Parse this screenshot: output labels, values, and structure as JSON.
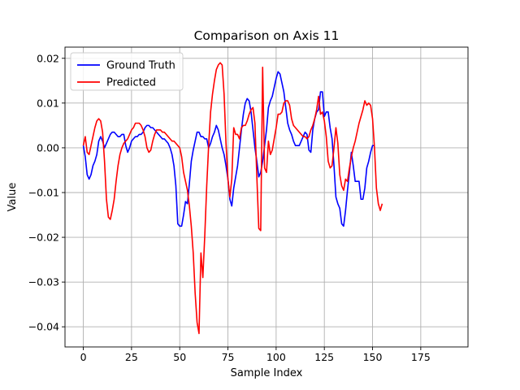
{
  "chart_data": {
    "type": "line",
    "title": "Comparison on Axis 11",
    "xlabel": "Sample Index",
    "ylabel": "Value",
    "xlim": [
      -9.5,
      199.5
    ],
    "ylim": [
      -0.0445,
      0.0225
    ],
    "xticks": [
      0,
      25,
      50,
      75,
      100,
      125,
      150,
      175
    ],
    "xtick_labels": [
      "0",
      "25",
      "50",
      "75",
      "100",
      "125",
      "150",
      "175"
    ],
    "yticks": [
      -0.04,
      -0.03,
      -0.02,
      -0.01,
      0.0,
      0.01,
      0.02
    ],
    "ytick_labels": [
      "−0.04",
      "−0.03",
      "−0.02",
      "−0.01",
      "0.00",
      "0.01",
      "0.02"
    ],
    "grid": true,
    "legend_position": "top-left",
    "series": [
      {
        "name": "Ground Truth",
        "color": "#0000ff",
        "points": [
          [
            0,
            0.0005
          ],
          [
            1,
            -0.002
          ],
          [
            2,
            -0.006
          ],
          [
            3,
            -0.007
          ],
          [
            4,
            -0.006
          ],
          [
            5,
            -0.004
          ],
          [
            6,
            -0.003
          ],
          [
            7,
            -0.0015
          ],
          [
            8,
            0.0015
          ],
          [
            9,
            0.0025
          ],
          [
            10,
            0.0015
          ],
          [
            11,
            0.0
          ],
          [
            12,
            0.001
          ],
          [
            13,
            0.002
          ],
          [
            14,
            0.003
          ],
          [
            15,
            0.0035
          ],
          [
            16,
            0.0035
          ],
          [
            17,
            0.003
          ],
          [
            18,
            0.0025
          ],
          [
            19,
            0.0025
          ],
          [
            20,
            0.003
          ],
          [
            21,
            0.003
          ],
          [
            22,
            0.0005
          ],
          [
            23,
            -0.001
          ],
          [
            24,
            0.0
          ],
          [
            25,
            0.0015
          ],
          [
            26,
            0.002
          ],
          [
            27,
            0.0025
          ],
          [
            28,
            0.0025
          ],
          [
            29,
            0.003
          ],
          [
            30,
            0.003
          ],
          [
            31,
            0.0035
          ],
          [
            32,
            0.0045
          ],
          [
            33,
            0.005
          ],
          [
            34,
            0.005
          ],
          [
            35,
            0.0045
          ],
          [
            36,
            0.0045
          ],
          [
            37,
            0.004
          ],
          [
            38,
            0.0035
          ],
          [
            39,
            0.003
          ],
          [
            40,
            0.0025
          ],
          [
            41,
            0.002
          ],
          [
            42,
            0.002
          ],
          [
            43,
            0.0015
          ],
          [
            44,
            0.001
          ],
          [
            45,
            0.0
          ],
          [
            46,
            -0.0015
          ],
          [
            47,
            -0.004
          ],
          [
            48,
            -0.0085
          ],
          [
            49,
            -0.017
          ],
          [
            50,
            -0.0175
          ],
          [
            51,
            -0.0175
          ],
          [
            52,
            -0.015
          ],
          [
            53,
            -0.012
          ],
          [
            54,
            -0.0125
          ],
          [
            55,
            -0.008
          ],
          [
            56,
            -0.003
          ],
          [
            57,
            -0.0005
          ],
          [
            58,
            0.0015
          ],
          [
            59,
            0.0035
          ],
          [
            60,
            0.0035
          ],
          [
            61,
            0.0025
          ],
          [
            62,
            0.0025
          ],
          [
            63,
            0.002
          ],
          [
            64,
            0.002
          ],
          [
            65,
            0.0
          ],
          [
            66,
            0.001
          ],
          [
            67,
            0.0025
          ],
          [
            68,
            0.0035
          ],
          [
            69,
            0.005
          ],
          [
            70,
            0.004
          ],
          [
            71,
            0.002
          ],
          [
            72,
            0.0
          ],
          [
            73,
            -0.0015
          ],
          [
            74,
            -0.004
          ],
          [
            75,
            -0.007
          ],
          [
            76,
            -0.0115
          ],
          [
            77,
            -0.013
          ],
          [
            78,
            -0.009
          ],
          [
            79,
            -0.0065
          ],
          [
            80,
            -0.004
          ],
          [
            81,
            0.0
          ],
          [
            82,
            0.004
          ],
          [
            83,
            0.0075
          ],
          [
            84,
            0.01
          ],
          [
            85,
            0.011
          ],
          [
            86,
            0.0105
          ],
          [
            87,
            0.008
          ],
          [
            88,
            0.004
          ],
          [
            89,
            0.0
          ],
          [
            90,
            -0.003
          ],
          [
            91,
            -0.0065
          ],
          [
            92,
            -0.0055
          ],
          [
            93,
            -0.003
          ],
          [
            94,
            0.0005
          ],
          [
            95,
            0.004
          ],
          [
            96,
            0.009
          ],
          [
            97,
            0.0105
          ],
          [
            98,
            0.0115
          ],
          [
            99,
            0.0135
          ],
          [
            100,
            0.0155
          ],
          [
            101,
            0.017
          ],
          [
            102,
            0.0165
          ],
          [
            103,
            0.0145
          ],
          [
            104,
            0.0125
          ],
          [
            105,
            0.009
          ],
          [
            106,
            0.0055
          ],
          [
            107,
            0.004
          ],
          [
            108,
            0.003
          ],
          [
            109,
            0.0015
          ],
          [
            110,
            0.0005
          ],
          [
            111,
            0.0005
          ],
          [
            112,
            0.0005
          ],
          [
            113,
            0.0015
          ],
          [
            114,
            0.0025
          ],
          [
            115,
            0.0035
          ],
          [
            116,
            0.003
          ],
          [
            117,
            -0.0005
          ],
          [
            118,
            -0.001
          ],
          [
            119,
            0.004
          ],
          [
            120,
            0.0065
          ],
          [
            121,
            0.008
          ],
          [
            122,
            0.0085
          ],
          [
            123,
            0.0125
          ],
          [
            124,
            0.0125
          ],
          [
            125,
            0.007
          ],
          [
            126,
            0.008
          ],
          [
            127,
            0.008
          ],
          [
            128,
            0.0045
          ],
          [
            129,
            0.002
          ],
          [
            130,
            -0.004
          ],
          [
            131,
            -0.011
          ],
          [
            132,
            -0.0125
          ],
          [
            133,
            -0.0135
          ],
          [
            134,
            -0.017
          ],
          [
            135,
            -0.0175
          ],
          [
            136,
            -0.014
          ],
          [
            137,
            -0.0095
          ],
          [
            138,
            -0.0055
          ],
          [
            139,
            -0.001
          ],
          [
            140,
            -0.004
          ],
          [
            141,
            -0.0075
          ],
          [
            142,
            -0.0075
          ],
          [
            143,
            -0.0075
          ],
          [
            144,
            -0.0115
          ],
          [
            145,
            -0.0115
          ],
          [
            146,
            -0.009
          ],
          [
            147,
            -0.0045
          ],
          [
            148,
            -0.003
          ],
          [
            149,
            -0.001
          ],
          [
            150,
            0.0005
          ],
          [
            151,
            0.0005
          ]
        ]
      },
      {
        "name": "Predicted",
        "color": "#ff0000",
        "points": [
          [
            0,
            0.0005
          ],
          [
            1,
            0.0025
          ],
          [
            2,
            -0.001
          ],
          [
            3,
            -0.0015
          ],
          [
            4,
            0.0005
          ],
          [
            5,
            0.0025
          ],
          [
            6,
            0.0045
          ],
          [
            7,
            0.006
          ],
          [
            8,
            0.0065
          ],
          [
            9,
            0.006
          ],
          [
            10,
            0.0035
          ],
          [
            11,
            -0.003
          ],
          [
            12,
            -0.0115
          ],
          [
            13,
            -0.0155
          ],
          [
            14,
            -0.016
          ],
          [
            15,
            -0.014
          ],
          [
            16,
            -0.0115
          ],
          [
            17,
            -0.0075
          ],
          [
            18,
            -0.004
          ],
          [
            19,
            -0.0015
          ],
          [
            20,
            0.0
          ],
          [
            21,
            0.001
          ],
          [
            22,
            0.0015
          ],
          [
            23,
            0.002
          ],
          [
            24,
            0.003
          ],
          [
            25,
            0.004
          ],
          [
            26,
            0.0045
          ],
          [
            27,
            0.0055
          ],
          [
            28,
            0.0055
          ],
          [
            29,
            0.0055
          ],
          [
            30,
            0.005
          ],
          [
            31,
            0.004
          ],
          [
            32,
            0.0025
          ],
          [
            33,
            0.0
          ],
          [
            34,
            -0.001
          ],
          [
            35,
            -0.0005
          ],
          [
            36,
            0.0015
          ],
          [
            37,
            0.003
          ],
          [
            38,
            0.004
          ],
          [
            39,
            0.004
          ],
          [
            40,
            0.004
          ],
          [
            41,
            0.0035
          ],
          [
            42,
            0.0035
          ],
          [
            43,
            0.003
          ],
          [
            44,
            0.0025
          ],
          [
            45,
            0.002
          ],
          [
            46,
            0.0015
          ],
          [
            47,
            0.0015
          ],
          [
            48,
            0.001
          ],
          [
            49,
            0.0005
          ],
          [
            50,
            0.0
          ],
          [
            51,
            -0.002
          ],
          [
            52,
            -0.0055
          ],
          [
            53,
            -0.0075
          ],
          [
            54,
            -0.0095
          ],
          [
            55,
            -0.013
          ],
          [
            56,
            -0.0175
          ],
          [
            57,
            -0.0235
          ],
          [
            58,
            -0.0325
          ],
          [
            59,
            -0.039
          ],
          [
            60,
            -0.0415
          ],
          [
            61,
            -0.0235
          ],
          [
            62,
            -0.029
          ],
          [
            63,
            -0.0195
          ],
          [
            64,
            -0.0085
          ],
          [
            65,
            0.0005
          ],
          [
            66,
            0.008
          ],
          [
            67,
            0.012
          ],
          [
            68,
            0.015
          ],
          [
            69,
            0.0175
          ],
          [
            70,
            0.0185
          ],
          [
            71,
            0.019
          ],
          [
            72,
            0.0185
          ],
          [
            73,
            0.012
          ],
          [
            74,
            0.001
          ],
          [
            75,
            -0.007
          ],
          [
            76,
            -0.011
          ],
          [
            77,
            -0.007
          ],
          [
            78,
            0.0045
          ],
          [
            79,
            0.003
          ],
          [
            80,
            0.003
          ],
          [
            81,
            0.002
          ],
          [
            82,
            0.0045
          ],
          [
            83,
            0.005
          ],
          [
            84,
            0.005
          ],
          [
            85,
            0.006
          ],
          [
            86,
            0.0075
          ],
          [
            87,
            0.0085
          ],
          [
            88,
            0.009
          ],
          [
            89,
            0.0055
          ],
          [
            90,
            -0.0065
          ],
          [
            91,
            -0.018
          ],
          [
            92,
            -0.0185
          ],
          [
            93,
            0.018
          ],
          [
            94,
            -0.0045
          ],
          [
            95,
            -0.0055
          ],
          [
            96,
            0.0015
          ],
          [
            97,
            -0.0015
          ],
          [
            98,
            -0.0005
          ],
          [
            99,
            0.002
          ],
          [
            100,
            0.0045
          ],
          [
            101,
            0.0075
          ],
          [
            102,
            0.0075
          ],
          [
            103,
            0.008
          ],
          [
            104,
            0.01
          ],
          [
            105,
            0.0105
          ],
          [
            106,
            0.0105
          ],
          [
            107,
            0.0095
          ],
          [
            108,
            0.0065
          ],
          [
            109,
            0.005
          ],
          [
            110,
            0.0045
          ],
          [
            111,
            0.004
          ],
          [
            112,
            0.0035
          ],
          [
            113,
            0.003
          ],
          [
            114,
            0.0025
          ],
          [
            115,
            0.0025
          ],
          [
            116,
            0.002
          ],
          [
            117,
            0.0025
          ],
          [
            118,
            0.004
          ],
          [
            119,
            0.005
          ],
          [
            120,
            0.0065
          ],
          [
            121,
            0.0085
          ],
          [
            122,
            0.0115
          ],
          [
            123,
            0.0075
          ],
          [
            124,
            0.008
          ],
          [
            125,
            0.006
          ],
          [
            126,
            0.0025
          ],
          [
            127,
            -0.003
          ],
          [
            128,
            -0.0045
          ],
          [
            129,
            -0.004
          ],
          [
            130,
            0.0
          ],
          [
            131,
            0.0045
          ],
          [
            132,
            0.001
          ],
          [
            133,
            -0.006
          ],
          [
            134,
            -0.0085
          ],
          [
            135,
            -0.0095
          ],
          [
            136,
            -0.007
          ],
          [
            137,
            -0.0075
          ],
          [
            138,
            -0.0045
          ],
          [
            139,
            -0.002
          ],
          [
            140,
            0.0
          ],
          [
            141,
            0.0015
          ],
          [
            142,
            0.0035
          ],
          [
            143,
            0.0055
          ],
          [
            144,
            0.007
          ],
          [
            145,
            0.0085
          ],
          [
            146,
            0.0105
          ],
          [
            147,
            0.0095
          ],
          [
            148,
            0.01
          ],
          [
            149,
            0.0095
          ],
          [
            150,
            0.0065
          ],
          [
            151,
            0.0
          ],
          [
            152,
            -0.009
          ],
          [
            153,
            -0.0125
          ],
          [
            154,
            -0.014
          ],
          [
            155,
            -0.0125
          ]
        ]
      }
    ]
  }
}
